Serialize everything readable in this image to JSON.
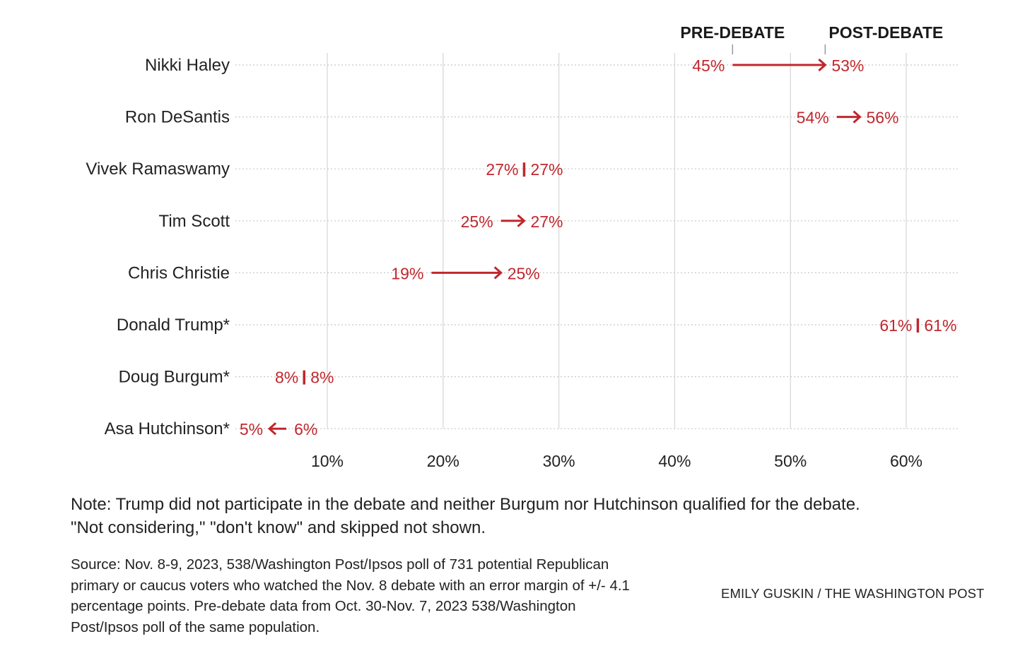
{
  "chart_data": {
    "type": "dot-arrow",
    "legend": {
      "pre_label": "PRE-DEBATE",
      "post_label": "POST-DEBATE"
    },
    "categories": [
      "Nikki Haley",
      "Ron DeSantis",
      "Vivek Ramaswamy",
      "Tim Scott",
      "Chris Christie",
      "Donald Trump*",
      "Doug Burgum*",
      "Asa Hutchinson*"
    ],
    "series": [
      {
        "name": "PRE-DEBATE",
        "values": [
          45,
          54,
          27,
          25,
          19,
          61,
          8,
          6
        ]
      },
      {
        "name": "POST-DEBATE",
        "values": [
          53,
          56,
          27,
          27,
          25,
          61,
          8,
          5
        ]
      }
    ],
    "x_ticks": [
      10,
      20,
      30,
      40,
      50,
      60
    ],
    "x_tick_labels": [
      "10%",
      "20%",
      "30%",
      "40%",
      "50%",
      "60%"
    ],
    "xlim": [
      2.1,
      64.5
    ],
    "unit": "%",
    "grid": true,
    "colors": {
      "accent": "#c0272d",
      "grid": "#dddddd",
      "dotted": "#c8c8c8",
      "text": "#222222"
    }
  },
  "note": {
    "line1": "Note: Trump did not participate in the debate and neither Burgum nor Hutchinson qualified for the debate.",
    "line2": "\"Not considering,\" \"don't know\" and skipped not shown."
  },
  "source": {
    "line1": "Source: Nov. 8-9, 2023, 538/Washington Post/Ipsos poll of 731 potential Republican",
    "line2": "primary or caucus voters who watched the Nov. 8 debate with an error margin of +/- 4.1",
    "line3": "percentage points. Pre-debate data from Oct. 30-Nov. 7, 2023 538/Washington",
    "line4": "Post/Ipsos poll of the same population."
  },
  "credit": "EMILY GUSKIN / THE WASHINGTON POST"
}
